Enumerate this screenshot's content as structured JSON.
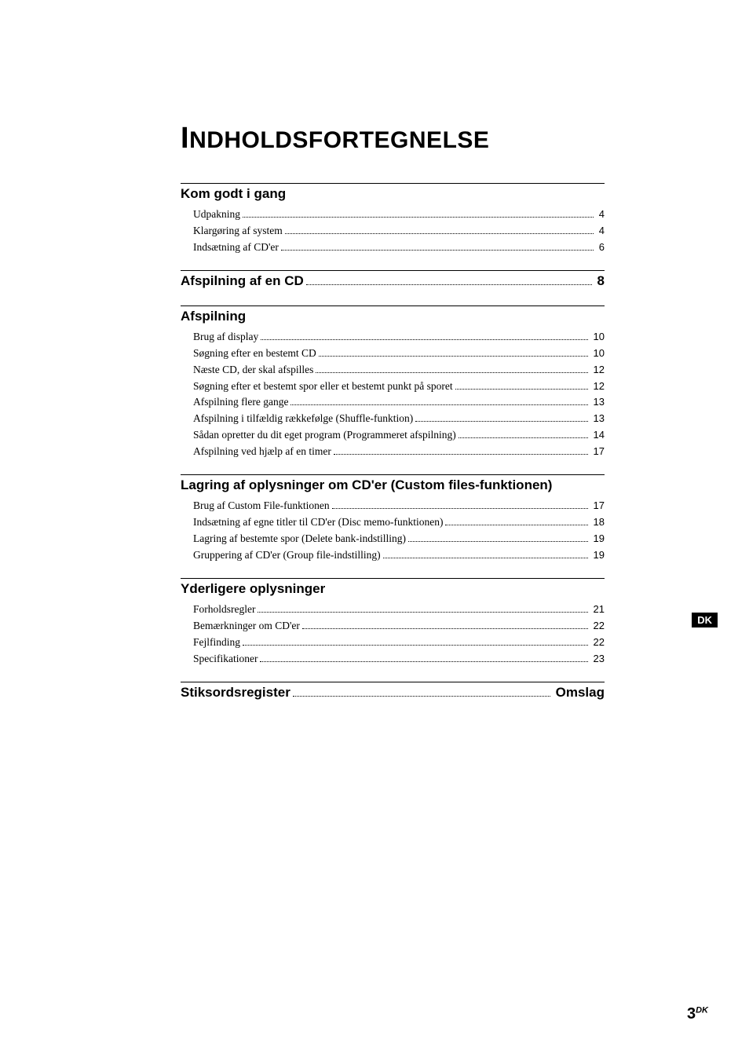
{
  "title_parts": {
    "cap": "I",
    "rest": "NDHOLDSFORTEGNELSE"
  },
  "sections": [
    {
      "type": "group",
      "heading": "Kom godt i gang",
      "items": [
        {
          "label": "Udpakning",
          "page": "4"
        },
        {
          "label": "Klargøring af system",
          "page": "4"
        },
        {
          "label": "Indsætning af CD'er",
          "page": "6"
        }
      ]
    },
    {
      "type": "inline",
      "heading": "Afspilning af en CD",
      "page": "8"
    },
    {
      "type": "group",
      "heading": "Afspilning",
      "items": [
        {
          "label": "Brug af display",
          "page": "10"
        },
        {
          "label": "Søgning efter en bestemt CD",
          "page": "10"
        },
        {
          "label": "Næste CD, der skal afspilles",
          "page": "12"
        },
        {
          "label": "Søgning efter et bestemt spor eller et bestemt punkt på sporet",
          "page": "12"
        },
        {
          "label": "Afspilning flere gange",
          "page": "13"
        },
        {
          "label": "Afspilning i tilfældig rækkefølge (Shuffle-funktion)",
          "page": "13"
        },
        {
          "label": "Sådan opretter du dit eget program (Programmeret afspilning)",
          "page": "14"
        },
        {
          "label": "Afspilning ved hjælp af en timer",
          "page": "17"
        }
      ]
    },
    {
      "type": "group",
      "heading": "Lagring af oplysninger om CD'er (Custom files-funktionen)",
      "items": [
        {
          "label": "Brug af Custom File-funktionen",
          "page": "17"
        },
        {
          "label": "Indsætning af egne titler til CD'er (Disc memo-funktionen)",
          "page": "18"
        },
        {
          "label": "Lagring af bestemte spor (Delete bank-indstilling)",
          "page": "19"
        },
        {
          "label": "Gruppering af CD'er (Group file-indstilling)",
          "page": "19"
        }
      ]
    },
    {
      "type": "group",
      "heading": "Yderligere oplysninger",
      "items": [
        {
          "label": "Forholdsregler",
          "page": "21"
        },
        {
          "label": "Bemærkninger om CD'er",
          "page": "22"
        },
        {
          "label": "Fejlfinding",
          "page": "22"
        },
        {
          "label": "Specifikationer",
          "page": "23"
        }
      ]
    },
    {
      "type": "inline",
      "heading": "Stiksordsregister",
      "page": "Omslag"
    }
  ],
  "side_tab": "DK",
  "page_number": {
    "num": "3",
    "sup": "DK"
  }
}
